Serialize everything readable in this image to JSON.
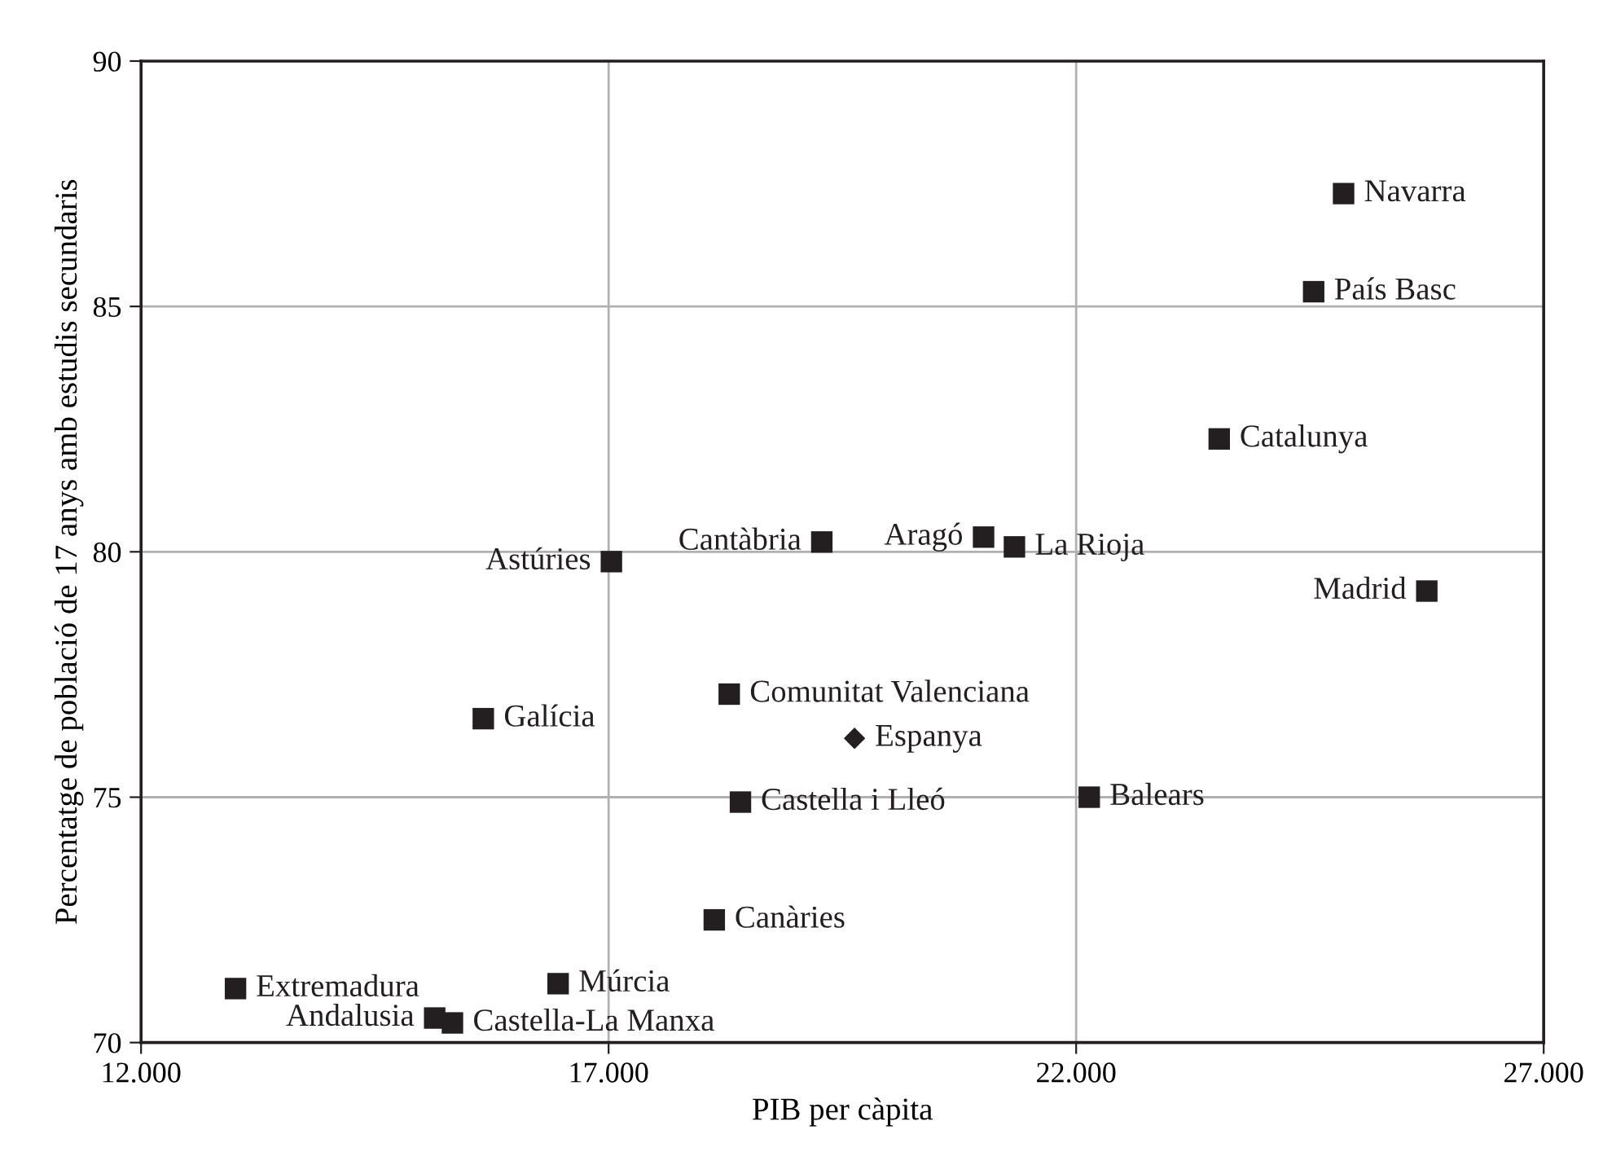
{
  "chart_data": {
    "type": "scatter",
    "xlabel": "PIB per càpita",
    "ylabel": "Percentatge de població de 17 anys amb estudis secundaris",
    "xlim": [
      12000,
      27000
    ],
    "xticks": [
      {
        "value": 12000,
        "label": "12.000"
      },
      {
        "value": 17000,
        "label": "17.000"
      },
      {
        "value": 22000,
        "label": "22.000"
      },
      {
        "value": 27000,
        "label": "27.000"
      }
    ],
    "ylim": [
      70,
      90
    ],
    "yticks": [
      70,
      75,
      80,
      85,
      90
    ],
    "grid": true,
    "marker": "square",
    "series": [
      {
        "name": "Navarra",
        "color": "#231f20",
        "x": [
          24860
        ],
        "values": [
          87.3
        ]
      },
      {
        "name": "País Basc",
        "color": "#231f20",
        "x": [
          24540
        ],
        "values": [
          85.3
        ]
      },
      {
        "name": "Catalunya",
        "color": "#231f20",
        "x": [
          23530
        ],
        "values": [
          82.3
        ]
      },
      {
        "name": "Madrid",
        "color": "#231f20",
        "x": [
          25750
        ],
        "values": [
          79.2
        ]
      },
      {
        "name": "La Rioja",
        "color": "#231f20",
        "x": [
          21340
        ],
        "values": [
          80.1
        ]
      },
      {
        "name": "Aragó",
        "color": "#231f20",
        "x": [
          21010
        ],
        "values": [
          80.3
        ]
      },
      {
        "name": "Cantàbria",
        "color": "#231f20",
        "x": [
          19280
        ],
        "values": [
          80.2
        ]
      },
      {
        "name": "Astúries",
        "color": "#231f20",
        "x": [
          17030
        ],
        "values": [
          79.8
        ]
      },
      {
        "name": "Galícia",
        "color": "#231f20",
        "x": [
          15660
        ],
        "values": [
          76.6
        ]
      },
      {
        "name": "Comunitat Valenciana",
        "color": "#231f20",
        "x": [
          18290
        ],
        "values": [
          77.1
        ]
      },
      {
        "name": "Espanya",
        "color": "#231f20",
        "x": [
          19630
        ],
        "values": [
          76.2
        ],
        "marker": "diamond"
      },
      {
        "name": "Castella i Lleó",
        "color": "#231f20",
        "x": [
          18410
        ],
        "values": [
          74.9
        ]
      },
      {
        "name": "Balears",
        "color": "#231f20",
        "x": [
          22140
        ],
        "values": [
          75.0
        ]
      },
      {
        "name": "Canàries",
        "color": "#231f20",
        "x": [
          18130
        ],
        "values": [
          72.5
        ]
      },
      {
        "name": "Extremadura",
        "color": "#231f20",
        "x": [
          13010
        ],
        "values": [
          71.1
        ]
      },
      {
        "name": "Múrcia",
        "color": "#231f20",
        "x": [
          16460
        ],
        "values": [
          71.2
        ]
      },
      {
        "name": "Castella-La Manxa",
        "color": "#231f20",
        "x": [
          15330
        ],
        "values": [
          70.4
        ]
      },
      {
        "name": "Andalusia",
        "color": "#231f20",
        "x": [
          15140
        ],
        "values": [
          70.5
        ]
      }
    ]
  }
}
